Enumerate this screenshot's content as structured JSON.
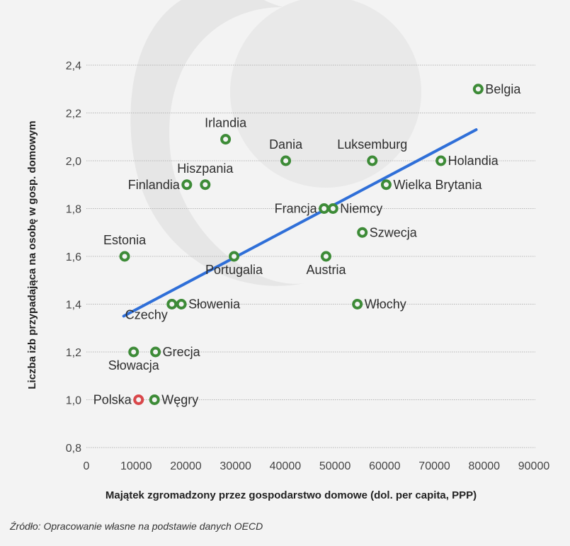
{
  "chart_data": {
    "type": "scatter",
    "title": "",
    "xlabel": "Majątek zgromadzony przez gospodarstwo domowe (dol. per capita, PPP)",
    "ylabel": "Liczba izb przypadająca na osobę w gosp. domowym",
    "xlim": [
      0,
      90000
    ],
    "ylim": [
      0.8,
      2.4
    ],
    "x_ticks": [
      "0",
      "10000",
      "20000",
      "30000",
      "40000",
      "50000",
      "60000",
      "70000",
      "80000",
      "90000"
    ],
    "x_tick_values": [
      0,
      10000,
      20000,
      30000,
      40000,
      50000,
      60000,
      70000,
      80000,
      90000
    ],
    "y_ticks": [
      "0,8",
      "1,0",
      "1,2",
      "1,4",
      "1,6",
      "1,8",
      "2,0",
      "2,2",
      "2,4"
    ],
    "y_tick_values": [
      0.8,
      1.0,
      1.2,
      1.4,
      1.6,
      1.8,
      2.0,
      2.2,
      2.4
    ],
    "grid": "horizontal-dotted",
    "colors": {
      "point": "#3d8b37",
      "highlight": "#d9474a",
      "trend": "#2f6fd8"
    },
    "points": [
      {
        "label": "Belgia",
        "x": 78800,
        "y": 2.3,
        "pos": "right"
      },
      {
        "label": "Irlandia",
        "x": 28000,
        "y": 2.09,
        "pos": "above"
      },
      {
        "label": "Dania",
        "x": 40100,
        "y": 2.0,
        "pos": "above"
      },
      {
        "label": "Luksemburg",
        "x": 57500,
        "y": 2.0,
        "pos": "above"
      },
      {
        "label": "Holandia",
        "x": 71300,
        "y": 2.0,
        "pos": "right"
      },
      {
        "label": "Finlandia",
        "x": 20200,
        "y": 1.9,
        "pos": "left"
      },
      {
        "label": "Hiszpania",
        "x": 23900,
        "y": 1.9,
        "pos": "above"
      },
      {
        "label": "Wielka Brytania",
        "x": 60300,
        "y": 1.9,
        "pos": "right"
      },
      {
        "label": "Francja",
        "x": 47800,
        "y": 1.8,
        "pos": "left"
      },
      {
        "label": "Niemcy",
        "x": 49600,
        "y": 1.8,
        "pos": "right"
      },
      {
        "label": "Szwecja",
        "x": 55500,
        "y": 1.7,
        "pos": "right"
      },
      {
        "label": "Estonia",
        "x": 7700,
        "y": 1.6,
        "pos": "above"
      },
      {
        "label": "Portugalia",
        "x": 29700,
        "y": 1.6,
        "pos": "below"
      },
      {
        "label": "Austria",
        "x": 48200,
        "y": 1.6,
        "pos": "below"
      },
      {
        "label": "Czechy",
        "x": 17200,
        "y": 1.4,
        "pos": "below-left"
      },
      {
        "label": "Słowenia",
        "x": 19100,
        "y": 1.4,
        "pos": "right"
      },
      {
        "label": "Włochy",
        "x": 54500,
        "y": 1.4,
        "pos": "right"
      },
      {
        "label": "Słowacja",
        "x": 9500,
        "y": 1.2,
        "pos": "below"
      },
      {
        "label": "Grecja",
        "x": 13900,
        "y": 1.2,
        "pos": "right"
      },
      {
        "label": "Polska",
        "x": 10500,
        "y": 1.0,
        "pos": "left",
        "highlight": true
      },
      {
        "label": "Węgry",
        "x": 13700,
        "y": 1.0,
        "pos": "right"
      }
    ],
    "trendline": {
      "x": [
        7500,
        78400
      ],
      "y": [
        1.35,
        2.13
      ]
    }
  },
  "source": "Źródło: Opracowanie własne na podstawie danych OECD"
}
